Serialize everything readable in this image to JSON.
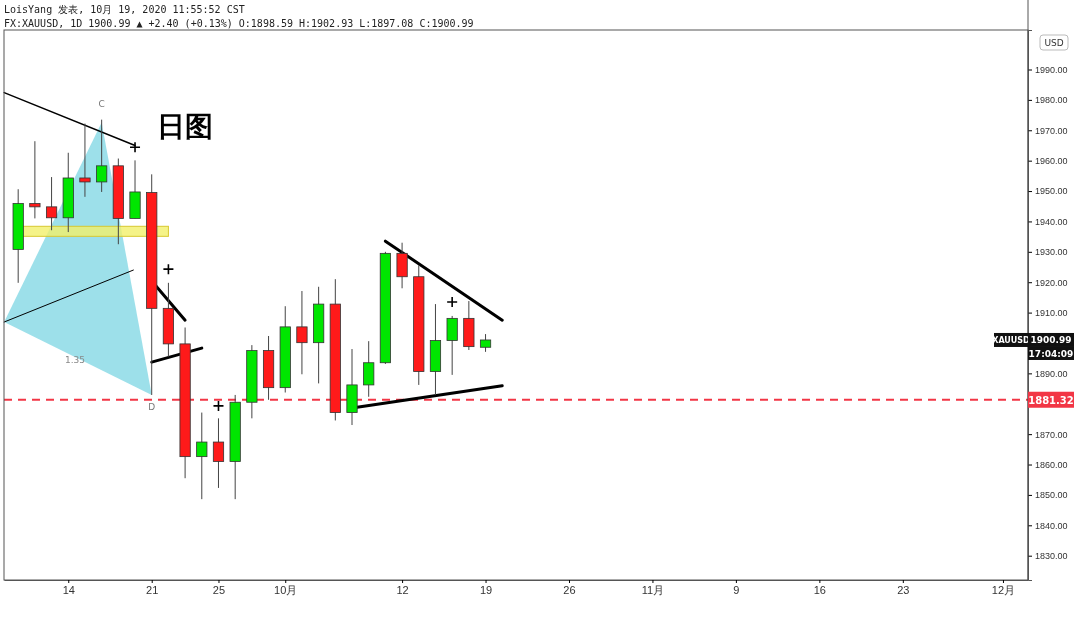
{
  "chart_data": {
    "type": "candlestick",
    "title": "日图",
    "categories": [
      null,
      null,
      null,
      "14",
      null,
      null,
      null,
      null,
      "21",
      null,
      null,
      null,
      "25",
      null,
      null,
      null,
      "10月",
      null,
      null,
      null,
      null,
      null,
      null,
      "12",
      null,
      null,
      null,
      null,
      "19",
      null,
      null,
      null,
      null,
      "26",
      null,
      null,
      null,
      null,
      "11月",
      null,
      null,
      null,
      null,
      "9",
      null,
      null,
      null,
      null,
      "16",
      null,
      null,
      null,
      null,
      "23",
      null,
      null,
      null,
      null,
      null,
      "12月",
      null
    ],
    "ohlc": [
      [
        1930.8,
        1950.6,
        1919.8,
        1945.9
      ],
      [
        1945.9,
        1966.4,
        1941.0,
        1944.8
      ],
      [
        1944.8,
        1954.6,
        1937.1,
        1941.2
      ],
      [
        1941.2,
        1962.6,
        1936.5,
        1954.3
      ],
      [
        1954.3,
        1972.2,
        1948.1,
        1953.0
      ],
      [
        1953.0,
        1973.5,
        1949.7,
        1958.3
      ],
      [
        1958.3,
        1960.7,
        1932.5,
        1941.0
      ],
      [
        1941.0,
        1960.1,
        1941.0,
        1949.7
      ],
      [
        1949.5,
        1955.5,
        1882.9,
        1911.4
      ],
      [
        1911.4,
        1919.8,
        1895.5,
        1899.7
      ],
      [
        1899.7,
        1905.1,
        1855.5,
        1862.6
      ],
      [
        1862.6,
        1877.1,
        1848.6,
        1867.4
      ],
      [
        1867.4,
        1875.2,
        1852.3,
        1861.0
      ],
      [
        1861.0,
        1882.9,
        1848.6,
        1880.5
      ],
      [
        1880.5,
        1899.3,
        1875.2,
        1897.5
      ],
      [
        1897.5,
        1902.3,
        1881.3,
        1885.3
      ],
      [
        1885.3,
        1912.1,
        1883.7,
        1905.3
      ],
      [
        1905.3,
        1917.1,
        1889.7,
        1900.1
      ],
      [
        1900.1,
        1918.5,
        1886.7,
        1912.8
      ],
      [
        1912.8,
        1921.0,
        1874.5,
        1877.1
      ],
      [
        1877.1,
        1898.0,
        1873.0,
        1886.2
      ],
      [
        1886.2,
        1900.6,
        1882.3,
        1893.5
      ],
      [
        1893.5,
        1930.0,
        1893.1,
        1929.5
      ],
      [
        1929.5,
        1933.0,
        1918.0,
        1921.8
      ],
      [
        1921.8,
        1925.6,
        1886.2,
        1890.6
      ],
      [
        1890.6,
        1912.8,
        1882.9,
        1900.8
      ],
      [
        1900.8,
        1908.9,
        1889.5,
        1908.1
      ],
      [
        1908.1,
        1913.8,
        1897.7,
        1898.8
      ],
      [
        1898.59,
        1902.93,
        1897.08,
        1900.99
      ],
      null,
      null,
      null,
      null,
      null,
      null,
      null,
      null,
      null,
      null,
      null,
      null,
      null,
      null,
      null,
      null,
      null,
      null,
      null,
      null,
      null,
      null,
      null,
      null,
      null,
      null,
      null,
      null,
      null,
      null,
      null,
      null
    ],
    "ylim": [
      1822,
      2003
    ],
    "yticks": [
      {
        "value": 1830,
        "label": "1830.00"
      },
      {
        "value": 1840,
        "label": "1840.00"
      },
      {
        "value": 1850,
        "label": "1850.00"
      },
      {
        "value": 1860,
        "label": "1860.00"
      },
      {
        "value": 1870,
        "label": "1870.00"
      },
      {
        "value": 1890,
        "label": "1890.00"
      },
      {
        "value": 1910,
        "label": "1910.00"
      },
      {
        "value": 1920,
        "label": "1920.00"
      },
      {
        "value": 1930,
        "label": "1930.00"
      },
      {
        "value": 1940,
        "label": "1940.00"
      },
      {
        "value": 1950,
        "label": "1950.00"
      },
      {
        "value": 1960,
        "label": "1960.00"
      },
      {
        "value": 1970,
        "label": "1970.00"
      },
      {
        "value": 1980,
        "label": "1980.00"
      },
      {
        "value": 1990,
        "label": "1990.00"
      }
    ],
    "ref_lines": [
      {
        "axis": "y",
        "value": 1881.32,
        "label": "1881.32",
        "color": "#f23645",
        "line_style": "dashed"
      }
    ],
    "annotations": [
      "LoisYang 发表, 10月 19, 2020 11:55:52 CST",
      "FX:XAUUSD, 1D 1900.99 ▲ +2.40 (+0.13%) O:1898.59 H:1902.93 L:1897.08 C:1900.99",
      "C",
      "D",
      "1.35",
      "USD",
      "XAUUSD",
      "1900.99",
      "17:04:09"
    ]
  }
}
